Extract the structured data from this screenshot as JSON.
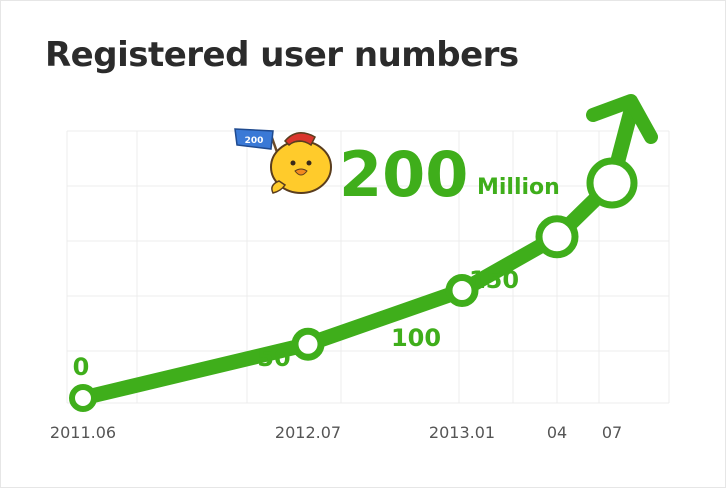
{
  "title": "Registered user numbers",
  "highlight": {
    "value": "200",
    "unit": "Million"
  },
  "mascot": {
    "flag_text": "200",
    "icon": "chick-mascot-icon"
  },
  "colors": {
    "line": "#3fae1b",
    "grid": "#ececec",
    "text": "#2b2b2b"
  },
  "chart_data": {
    "type": "line",
    "title": "Registered user numbers",
    "xlabel": "",
    "ylabel": "",
    "unit": "Million",
    "x": [
      "2011.06",
      "2012.07",
      "2013.01",
      "04",
      "07"
    ],
    "values": [
      0,
      50,
      100,
      150,
      200
    ],
    "data_labels": [
      "0",
      "50",
      "100",
      "150",
      ""
    ],
    "ylim": [
      0,
      200
    ],
    "grid": true,
    "trend_arrow": true
  }
}
